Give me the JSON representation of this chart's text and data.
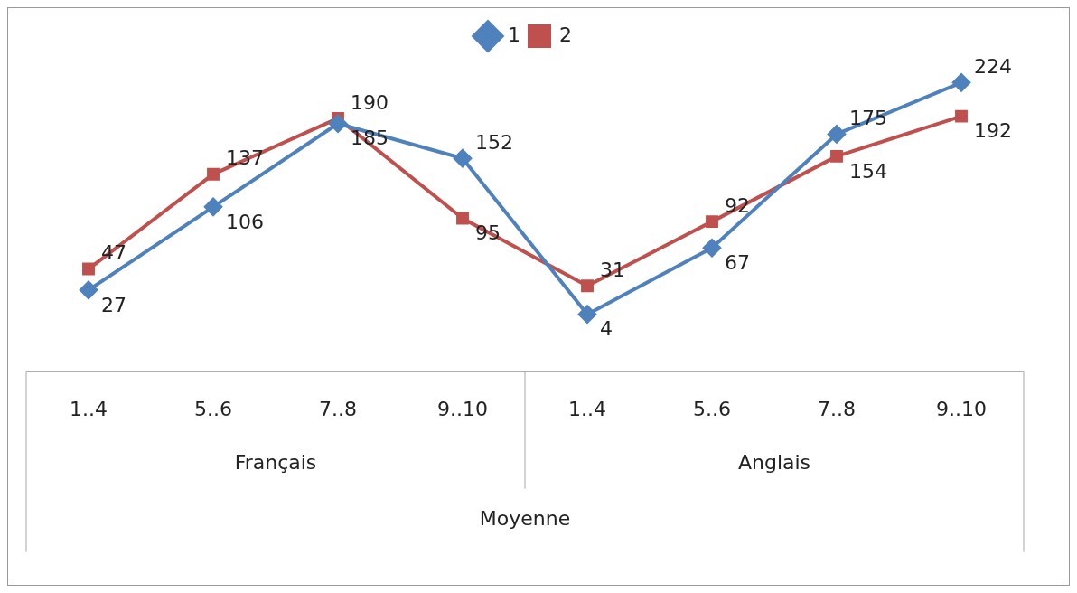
{
  "chart_data": {
    "type": "line",
    "xlabel": "Moyenne",
    "categories": [
      "1..4",
      "5..6",
      "7..8",
      "9..10",
      "1..4",
      "5..6",
      "7..8",
      "9..10"
    ],
    "annotations": [
      "Français",
      "Anglais"
    ],
    "series": [
      {
        "name": "1",
        "color": "#4f81bd",
        "marker": "diamond",
        "values": [
          27,
          106,
          185,
          152,
          4,
          67,
          175,
          224
        ]
      },
      {
        "name": "2",
        "color": "#c0504d",
        "marker": "square",
        "values": [
          47,
          137,
          190,
          95,
          31,
          92,
          154,
          192
        ]
      }
    ],
    "data_labels": true,
    "grid": false,
    "legend": "top"
  }
}
